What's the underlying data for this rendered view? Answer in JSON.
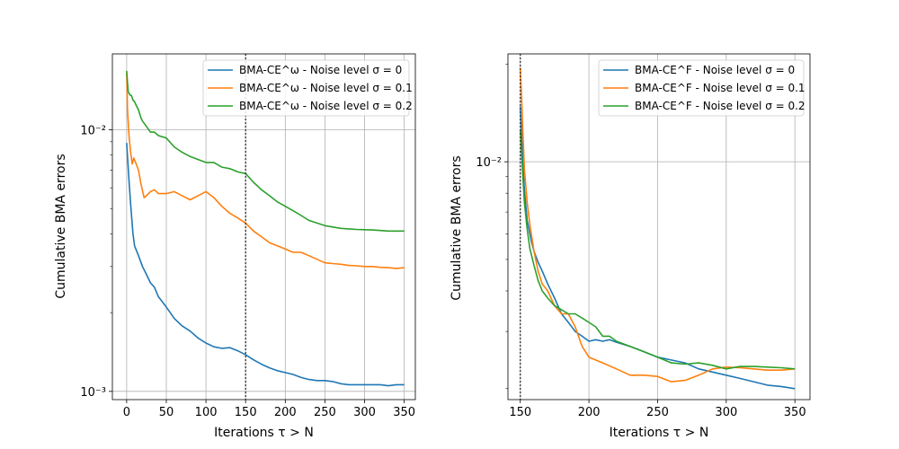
{
  "chart_data": [
    {
      "type": "line",
      "title": "",
      "xlabel": "Iterations τ > N",
      "ylabel": "Cumulative BMA errors",
      "yscale": "log",
      "xlim": [
        -18,
        364
      ],
      "ylim": [
        0.00093,
        0.0195
      ],
      "xticks": [
        0,
        50,
        100,
        150,
        200,
        250,
        300,
        350
      ],
      "xtick_labels": [
        "0",
        "50",
        "100",
        "150",
        "200",
        "250",
        "300",
        "350"
      ],
      "yticks": [
        0.001,
        0.01
      ],
      "ytick_labels": [
        "10⁻³",
        "10⁻²"
      ],
      "vline_x": 150,
      "grid": true,
      "legend_position": "top-right",
      "series": [
        {
          "name": "BMA-CE^ω - Noise level σ = 0",
          "color": "#1f77b4",
          "x": [
            0,
            3,
            5,
            8,
            10,
            15,
            20,
            25,
            30,
            35,
            40,
            45,
            50,
            60,
            70,
            80,
            90,
            100,
            110,
            120,
            130,
            140,
            150,
            160,
            170,
            180,
            190,
            200,
            210,
            220,
            230,
            240,
            250,
            260,
            270,
            280,
            290,
            300,
            310,
            320,
            330,
            340,
            350
          ],
          "y": [
            0.0089,
            0.0064,
            0.0052,
            0.004,
            0.0036,
            0.0033,
            0.003,
            0.0028,
            0.0026,
            0.0025,
            0.0023,
            0.0022,
            0.0021,
            0.0019,
            0.00178,
            0.0017,
            0.0016,
            0.00153,
            0.00148,
            0.00146,
            0.00147,
            0.00143,
            0.00138,
            0.00132,
            0.00127,
            0.00123,
            0.0012,
            0.00118,
            0.00116,
            0.00113,
            0.00111,
            0.0011,
            0.0011,
            0.00109,
            0.00107,
            0.00106,
            0.00106,
            0.00106,
            0.00106,
            0.00106,
            0.00105,
            0.00106,
            0.00106
          ]
        },
        {
          "name": "BMA-CE^ω - Noise level σ = 0.1",
          "color": "#ff7f0e",
          "x": [
            0,
            1,
            3,
            5,
            7,
            9,
            12,
            15,
            18,
            22,
            25,
            30,
            35,
            40,
            50,
            60,
            70,
            80,
            90,
            100,
            110,
            120,
            130,
            140,
            150,
            160,
            170,
            180,
            190,
            200,
            210,
            220,
            230,
            240,
            250,
            260,
            270,
            280,
            290,
            300,
            310,
            320,
            330,
            340,
            350
          ],
          "y": [
            0.0165,
            0.012,
            0.0095,
            0.0082,
            0.0074,
            0.0078,
            0.0074,
            0.007,
            0.0062,
            0.0055,
            0.0056,
            0.0058,
            0.0059,
            0.0057,
            0.0057,
            0.0058,
            0.0056,
            0.0054,
            0.0056,
            0.0058,
            0.0055,
            0.0051,
            0.0048,
            0.0046,
            0.0044,
            0.0041,
            0.0039,
            0.0037,
            0.0036,
            0.0035,
            0.0034,
            0.0034,
            0.0033,
            0.0032,
            0.0031,
            0.00308,
            0.00306,
            0.00303,
            0.00302,
            0.003,
            0.003,
            0.00298,
            0.00297,
            0.00295,
            0.00297
          ]
        },
        {
          "name": "BMA-CE^ω - Noise level σ = 0.2",
          "color": "#2ca02c",
          "x": [
            0,
            1,
            2,
            4,
            6,
            8,
            10,
            12,
            15,
            18,
            20,
            25,
            30,
            35,
            40,
            50,
            60,
            70,
            80,
            90,
            100,
            110,
            120,
            130,
            140,
            150,
            160,
            170,
            180,
            190,
            200,
            210,
            220,
            230,
            240,
            250,
            260,
            270,
            280,
            290,
            300,
            310,
            320,
            330,
            340,
            350
          ],
          "y": [
            0.0168,
            0.0152,
            0.014,
            0.0136,
            0.0135,
            0.013,
            0.0128,
            0.0124,
            0.0119,
            0.0111,
            0.0108,
            0.0103,
            0.0098,
            0.0098,
            0.0095,
            0.0093,
            0.0086,
            0.0082,
            0.0079,
            0.0077,
            0.0075,
            0.0075,
            0.0072,
            0.0071,
            0.0069,
            0.0068,
            0.0063,
            0.0059,
            0.0056,
            0.0053,
            0.0051,
            0.0049,
            0.0047,
            0.0045,
            0.0044,
            0.0043,
            0.00425,
            0.0042,
            0.00418,
            0.00416,
            0.00415,
            0.00414,
            0.00412,
            0.0041,
            0.0041,
            0.0041
          ]
        }
      ]
    },
    {
      "type": "line",
      "title": "",
      "xlabel": "Iterations τ > N",
      "ylabel": "Cumulative BMA errors",
      "yscale": "log",
      "xlim": [
        141,
        361
      ],
      "ylim": [
        0.00185,
        0.0215
      ],
      "xticks": [
        150,
        200,
        250,
        300,
        350
      ],
      "xtick_labels": [
        "150",
        "200",
        "250",
        "300",
        "350"
      ],
      "yticks": [
        0.01
      ],
      "ytick_labels": [
        "10⁻²"
      ],
      "vline_x": 150,
      "grid": true,
      "legend_position": "top-right",
      "series": [
        {
          "name": "BMA-CE^F - Noise level σ = 0",
          "color": "#1f77b4",
          "x": [
            150,
            151,
            152,
            153,
            155,
            158,
            160,
            163,
            166,
            170,
            175,
            180,
            185,
            190,
            195,
            200,
            205,
            210,
            215,
            220,
            230,
            240,
            250,
            260,
            270,
            280,
            290,
            300,
            310,
            320,
            330,
            340,
            350
          ],
          "y": [
            0.0148,
            0.012,
            0.0098,
            0.0082,
            0.0066,
            0.0057,
            0.0053,
            0.0049,
            0.0046,
            0.0042,
            0.0038,
            0.0034,
            0.0032,
            0.003,
            0.0029,
            0.0028,
            0.00283,
            0.0028,
            0.00283,
            0.00278,
            0.0027,
            0.0026,
            0.0025,
            0.00245,
            0.0024,
            0.0023,
            0.00225,
            0.0022,
            0.00215,
            0.0021,
            0.00205,
            0.00203,
            0.002
          ]
        },
        {
          "name": "BMA-CE^F - Noise level σ = 0.1",
          "color": "#ff7f0e",
          "x": [
            150,
            151,
            152,
            153,
            155,
            157,
            160,
            163,
            166,
            170,
            175,
            180,
            185,
            190,
            195,
            200,
            210,
            220,
            230,
            240,
            250,
            260,
            270,
            280,
            290,
            300,
            310,
            320,
            330,
            340,
            350
          ],
          "y": [
            0.0195,
            0.0155,
            0.012,
            0.0095,
            0.0075,
            0.0064,
            0.0053,
            0.0046,
            0.0042,
            0.004,
            0.0036,
            0.0034,
            0.0034,
            0.0031,
            0.0027,
            0.0025,
            0.0024,
            0.0023,
            0.0022,
            0.0022,
            0.00218,
            0.0021,
            0.00212,
            0.0022,
            0.0023,
            0.00233,
            0.00232,
            0.0023,
            0.00228,
            0.00228,
            0.0023
          ]
        },
        {
          "name": "BMA-CE^F - Noise level σ = 0.2",
          "color": "#2ca02c",
          "x": [
            150,
            151,
            152,
            153,
            155,
            157,
            160,
            163,
            166,
            170,
            175,
            180,
            185,
            190,
            195,
            200,
            205,
            210,
            215,
            220,
            230,
            240,
            250,
            260,
            270,
            280,
            290,
            300,
            310,
            320,
            330,
            340,
            350
          ],
          "y": [
            0.0125,
            0.0105,
            0.0088,
            0.0075,
            0.0062,
            0.0054,
            0.0048,
            0.0043,
            0.004,
            0.0038,
            0.0036,
            0.0035,
            0.0034,
            0.0034,
            0.0033,
            0.0032,
            0.0031,
            0.0029,
            0.0029,
            0.0028,
            0.0027,
            0.0026,
            0.0025,
            0.0024,
            0.00238,
            0.0024,
            0.00236,
            0.0023,
            0.00234,
            0.00234,
            0.00233,
            0.00232,
            0.0023
          ]
        }
      ]
    }
  ]
}
